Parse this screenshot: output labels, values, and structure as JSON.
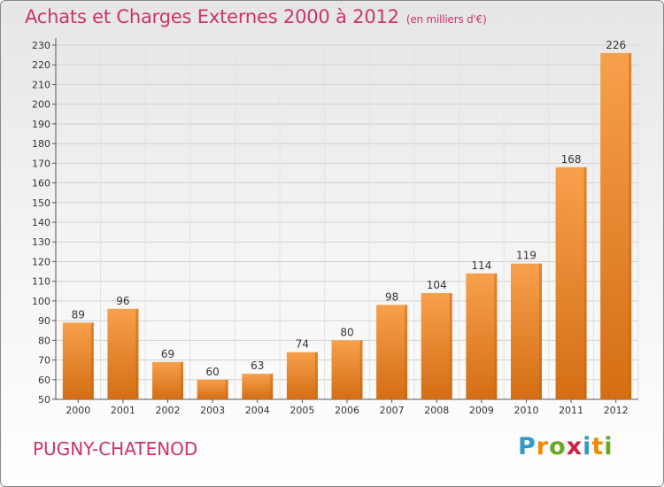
{
  "header": {
    "title": "Achats et Charges Externes 2000 à 2012",
    "unit": "(en milliers d'€)"
  },
  "footer": {
    "commune": "PUGNY-CHATENOD",
    "logo_letters": [
      "P",
      "r",
      "o",
      "x",
      "i",
      "t",
      "i"
    ],
    "logo_colors": [
      "#3399cc",
      "#f08a00",
      "#66aa22",
      "#cc2244",
      "#3399cc",
      "#f08a00",
      "#66aa22"
    ]
  },
  "chart_data": {
    "type": "bar",
    "title": "Achats et Charges Externes 2000 à 2012",
    "xlabel": "",
    "ylabel": "",
    "categories": [
      "2000",
      "2001",
      "2002",
      "2003",
      "2004",
      "2005",
      "2006",
      "2007",
      "2008",
      "2009",
      "2010",
      "2011",
      "2012"
    ],
    "values": [
      89,
      96,
      69,
      60,
      63,
      74,
      80,
      98,
      104,
      114,
      119,
      168,
      226
    ],
    "ylim": [
      50,
      230
    ],
    "yticks": [
      50,
      60,
      70,
      80,
      90,
      100,
      110,
      120,
      130,
      140,
      150,
      160,
      170,
      180,
      190,
      200,
      210,
      220,
      230
    ],
    "grid": true,
    "bar_color": "#f08c30"
  }
}
